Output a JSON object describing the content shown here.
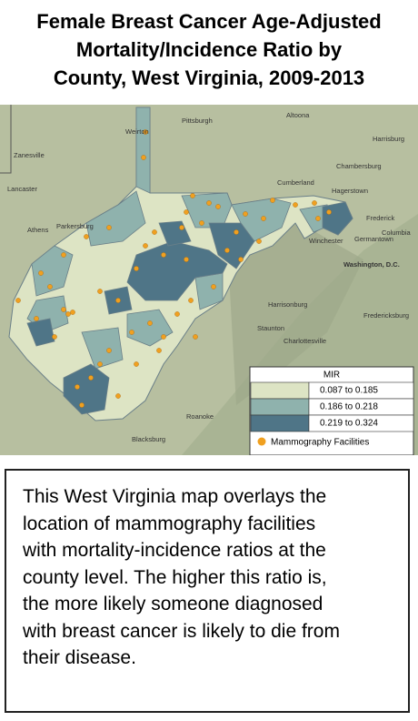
{
  "title_lines": [
    "Female Breast Cancer Age-Adjusted",
    "Mortality/Incidence Ratio by",
    "County, West Virginia, 2009-2013"
  ],
  "map": {
    "place_labels": [
      "Pittsburgh",
      "Altoona",
      "Harrisburg",
      "Weirton",
      "Chambersburg",
      "Zanesville",
      "Lancaster",
      "Cumberland",
      "Hagerstown",
      "Frederick",
      "Parkersburg",
      "Athens",
      "Winchester",
      "Germantown",
      "Columbia",
      "Washington, D.C.",
      "Harrisonburg",
      "Fredericksburg",
      "Staunton",
      "Charlottesville",
      "Blacksburg",
      "Roanoke"
    ]
  },
  "legend": {
    "title": "MIR",
    "entries": [
      {
        "label": "0.087 to 0.185",
        "color": "#dde4c4"
      },
      {
        "label": "0.186 to 0.218",
        "color": "#8fb2ad"
      },
      {
        "label": "0.219 to 0.324",
        "color": "#4f7587"
      }
    ],
    "facility_label": "Mammography Facilities",
    "facility_color": "#f0a020"
  },
  "caption_lines": [
    "This West Virginia map overlays the",
    "location of mammography facilities",
    "with mortality-incidence ratios at the",
    "county level. The higher this ratio is,",
    "the more likely someone diagnosed",
    "with breast cancer is likely to die from",
    "their disease."
  ]
}
